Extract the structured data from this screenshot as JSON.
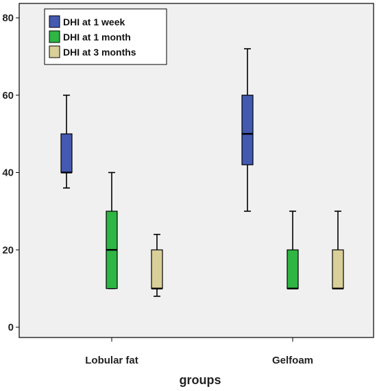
{
  "chart_data": {
    "type": "boxplot",
    "title": "",
    "xlabel": "groups",
    "ylabel": "",
    "categories": [
      "Lobular fat",
      "Gelfoam"
    ],
    "ylim": [
      -3,
      82
    ],
    "yticks": [
      0,
      20,
      40,
      60,
      80
    ],
    "grid": false,
    "legend_position": "top-left",
    "series": [
      {
        "name": "DHI at 1 week",
        "color": "#4459b0",
        "boxes": [
          {
            "min": 36,
            "q1": 40,
            "median": 40,
            "q3": 50,
            "max": 60
          },
          {
            "min": 30,
            "q1": 42,
            "median": 50,
            "q3": 60,
            "max": 72
          }
        ]
      },
      {
        "name": "DHI at 1 month",
        "color": "#2fb544",
        "boxes": [
          {
            "min": 10,
            "q1": 10,
            "median": 20,
            "q3": 30,
            "max": 40
          },
          {
            "min": 10,
            "q1": 10,
            "median": 10,
            "q3": 20,
            "max": 30
          }
        ]
      },
      {
        "name": "DHI at 3 months",
        "color": "#d8cf99",
        "boxes": [
          {
            "min": 8,
            "q1": 10,
            "median": 10,
            "q3": 20,
            "max": 24
          },
          {
            "min": 10,
            "q1": 10,
            "median": 10,
            "q3": 20,
            "max": 30
          }
        ]
      }
    ]
  }
}
